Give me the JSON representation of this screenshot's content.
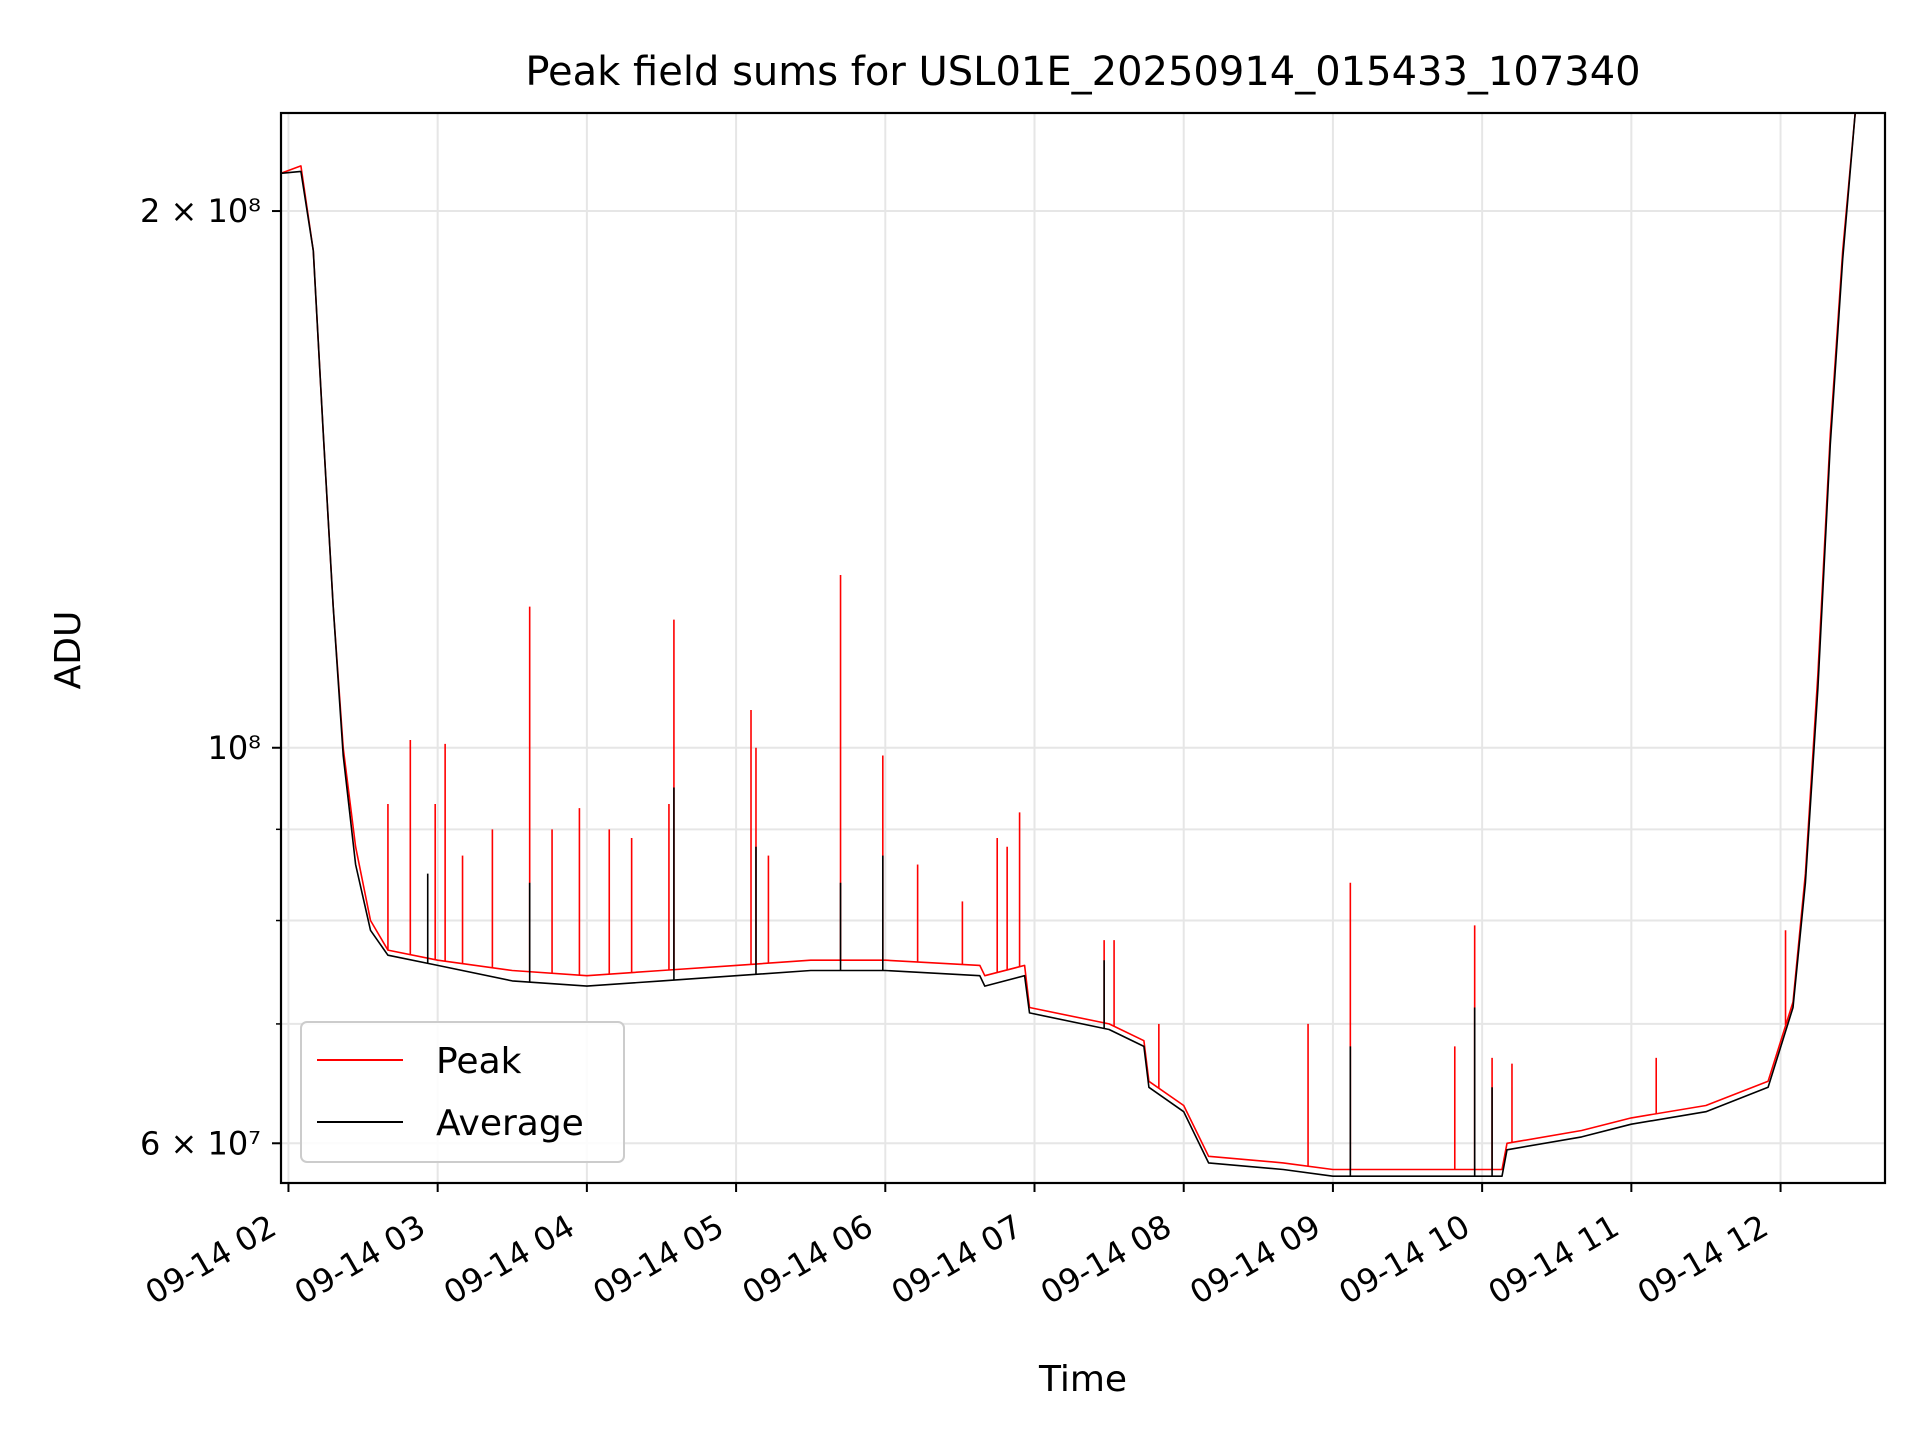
{
  "chart_data": {
    "type": "line",
    "title": "Peak field sums for USL01E_20250914_015433_107340",
    "xlabel": "Time",
    "ylabel": "ADU",
    "yscale": "log",
    "ylim": [
      57000000,
      227000000
    ],
    "xlim": [
      "09-14 01:57",
      "09-14 12:42"
    ],
    "grid": true,
    "legend_position": "lower-left",
    "x_ticks": [
      "09-14 02",
      "09-14 03",
      "09-14 04",
      "09-14 05",
      "09-14 06",
      "09-14 07",
      "09-14 08",
      "09-14 09",
      "09-14 10",
      "09-14 11",
      "09-14 12"
    ],
    "y_ticks": [
      {
        "value": 200000000,
        "label": "2 × 10⁸"
      },
      {
        "value": 100000000,
        "label": "10⁸"
      },
      {
        "value": 60000000,
        "label": "6 × 10⁷"
      }
    ],
    "y_minor_ticks": [
      70000000,
      80000000,
      90000000
    ],
    "series": [
      {
        "name": "Peak",
        "color": "#ff0000",
        "points": [
          [
            "09-14 01:57",
            210000000
          ],
          [
            "09-14 02:05",
            212000000
          ],
          [
            "09-14 02:10",
            190000000
          ],
          [
            "09-14 02:14",
            150000000
          ],
          [
            "09-14 02:18",
            120000000
          ],
          [
            "09-14 02:22",
            100000000
          ],
          [
            "09-14 02:27",
            88000000
          ],
          [
            "09-14 02:33",
            80000000
          ],
          [
            "09-14 02:40",
            77000000
          ],
          [
            "09-14 03:00",
            76000000
          ],
          [
            "09-14 03:30",
            75000000
          ],
          [
            "09-14 04:00",
            74500000
          ],
          [
            "09-14 04:30",
            75000000
          ],
          [
            "09-14 05:00",
            75500000
          ],
          [
            "09-14 05:30",
            76000000
          ],
          [
            "09-14 06:00",
            76000000
          ],
          [
            "09-14 06:38",
            75500000
          ],
          [
            "09-14 06:40",
            74500000
          ],
          [
            "09-14 06:56",
            75500000
          ],
          [
            "09-14 06:58",
            71500000
          ],
          [
            "09-14 07:30",
            70000000
          ],
          [
            "09-14 07:44",
            68500000
          ],
          [
            "09-14 07:46",
            65000000
          ],
          [
            "09-14 08:00",
            63000000
          ],
          [
            "09-14 08:10",
            59000000
          ],
          [
            "09-14 08:40",
            58500000
          ],
          [
            "09-14 09:00",
            58000000
          ],
          [
            "09-14 09:30",
            58000000
          ],
          [
            "09-14 10:08",
            58000000
          ],
          [
            "09-14 10:10",
            60000000
          ],
          [
            "09-14 10:40",
            61000000
          ],
          [
            "09-14 11:00",
            62000000
          ],
          [
            "09-14 11:30",
            63000000
          ],
          [
            "09-14 11:55",
            65000000
          ],
          [
            "09-14 12:05",
            72000000
          ],
          [
            "09-14 12:10",
            85000000
          ],
          [
            "09-14 12:15",
            110000000
          ],
          [
            "09-14 12:20",
            150000000
          ],
          [
            "09-14 12:25",
            190000000
          ],
          [
            "09-14 12:30",
            227000000
          ]
        ],
        "spikes": [
          [
            "09-14 02:49",
            101000000
          ],
          [
            "09-14 03:03",
            100500000
          ],
          [
            "09-14 02:40",
            93000000
          ],
          [
            "09-14 02:59",
            93000000
          ],
          [
            "09-14 03:10",
            87000000
          ],
          [
            "09-14 03:22",
            90000000
          ],
          [
            "09-14 03:37",
            120000000
          ],
          [
            "09-14 03:46",
            90000000
          ],
          [
            "09-14 03:57",
            92500000
          ],
          [
            "09-14 04:09",
            90000000
          ],
          [
            "09-14 04:18",
            89000000
          ],
          [
            "09-14 04:33",
            93000000
          ],
          [
            "09-14 04:35",
            118000000
          ],
          [
            "09-14 05:06",
            105000000
          ],
          [
            "09-14 05:08",
            100000000
          ],
          [
            "09-14 05:13",
            87000000
          ],
          [
            "09-14 05:42",
            125000000
          ],
          [
            "09-14 05:59",
            99000000
          ],
          [
            "09-14 06:13",
            86000000
          ],
          [
            "09-14 06:31",
            82000000
          ],
          [
            "09-14 06:45",
            89000000
          ],
          [
            "09-14 06:49",
            88000000
          ],
          [
            "09-14 06:54",
            92000000
          ],
          [
            "09-14 07:28",
            78000000
          ],
          [
            "09-14 07:32",
            78000000
          ],
          [
            "09-14 07:50",
            70000000
          ],
          [
            "09-14 08:50",
            70000000
          ],
          [
            "09-14 09:07",
            84000000
          ],
          [
            "09-14 09:49",
            68000000
          ],
          [
            "09-14 09:57",
            79500000
          ],
          [
            "09-14 10:04",
            67000000
          ],
          [
            "09-14 10:12",
            66500000
          ],
          [
            "09-14 11:10",
            67000000
          ],
          [
            "09-14 12:02",
            79000000
          ]
        ]
      },
      {
        "name": "Average",
        "color": "#000000",
        "points": [
          [
            "09-14 01:57",
            210000000
          ],
          [
            "09-14 02:05",
            210500000
          ],
          [
            "09-14 02:10",
            190000000
          ],
          [
            "09-14 02:14",
            150000000
          ],
          [
            "09-14 02:18",
            120000000
          ],
          [
            "09-14 02:22",
            99000000
          ],
          [
            "09-14 02:27",
            86000000
          ],
          [
            "09-14 02:33",
            79000000
          ],
          [
            "09-14 02:40",
            76500000
          ],
          [
            "09-14 03:00",
            75500000
          ],
          [
            "09-14 03:30",
            74000000
          ],
          [
            "09-14 04:00",
            73500000
          ],
          [
            "09-14 04:30",
            74000000
          ],
          [
            "09-14 05:00",
            74500000
          ],
          [
            "09-14 05:30",
            75000000
          ],
          [
            "09-14 06:00",
            75000000
          ],
          [
            "09-14 06:38",
            74500000
          ],
          [
            "09-14 06:40",
            73500000
          ],
          [
            "09-14 06:56",
            74500000
          ],
          [
            "09-14 06:58",
            71000000
          ],
          [
            "09-14 07:30",
            69500000
          ],
          [
            "09-14 07:44",
            68000000
          ],
          [
            "09-14 07:46",
            64500000
          ],
          [
            "09-14 08:00",
            62500000
          ],
          [
            "09-14 08:10",
            58500000
          ],
          [
            "09-14 08:40",
            58000000
          ],
          [
            "09-14 09:00",
            57500000
          ],
          [
            "09-14 09:30",
            57500000
          ],
          [
            "09-14 10:08",
            57500000
          ],
          [
            "09-14 10:10",
            59500000
          ],
          [
            "09-14 10:40",
            60500000
          ],
          [
            "09-14 11:00",
            61500000
          ],
          [
            "09-14 11:30",
            62500000
          ],
          [
            "09-14 11:55",
            64500000
          ],
          [
            "09-14 12:05",
            71500000
          ],
          [
            "09-14 12:10",
            84000000
          ],
          [
            "09-14 12:15",
            108000000
          ],
          [
            "09-14 12:20",
            148000000
          ],
          [
            "09-14 12:25",
            188000000
          ],
          [
            "09-14 12:30",
            227000000
          ]
        ],
        "spikes": [
          [
            "09-14 02:56",
            85000000
          ],
          [
            "09-14 03:37",
            84000000
          ],
          [
            "09-14 04:35",
            95000000
          ],
          [
            "09-14 05:08",
            88000000
          ],
          [
            "09-14 05:42",
            84000000
          ],
          [
            "09-14 05:59",
            87000000
          ],
          [
            "09-14 07:28",
            76000000
          ],
          [
            "09-14 09:07",
            68000000
          ],
          [
            "09-14 09:57",
            71500000
          ],
          [
            "09-14 10:04",
            64500000
          ]
        ]
      }
    ]
  }
}
